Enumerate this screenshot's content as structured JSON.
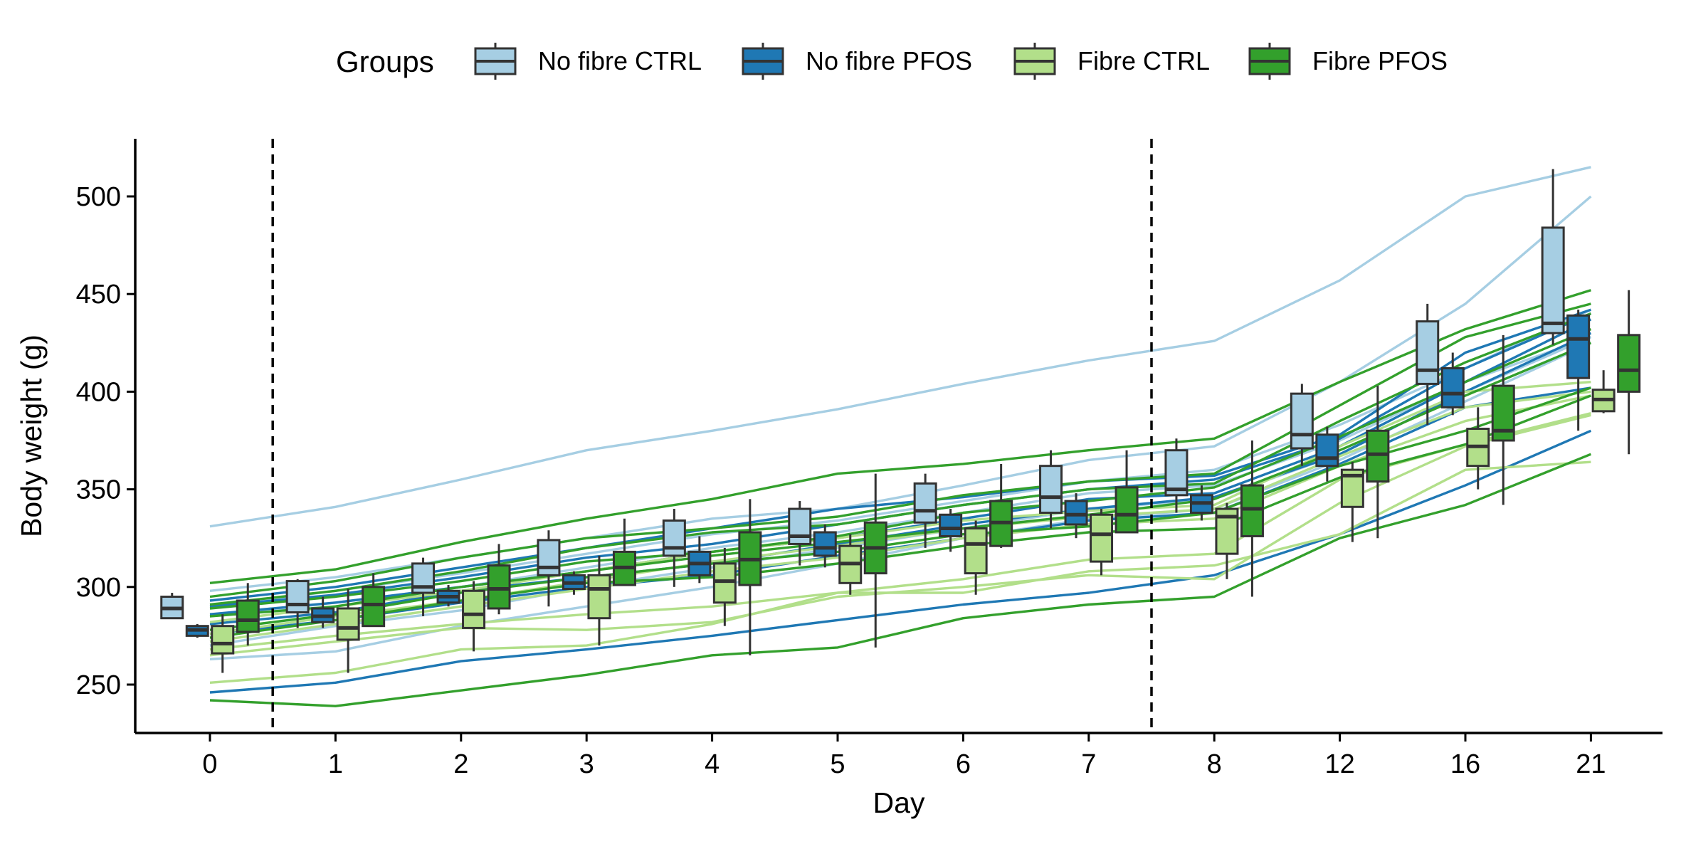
{
  "chart_data": {
    "type": "box",
    "title": "",
    "xlabel": "Day",
    "ylabel": "Body weight (g)",
    "legend_title": "Groups",
    "legend_position": "top",
    "grid": false,
    "categories": [
      "0",
      "1",
      "2",
      "3",
      "4",
      "5",
      "6",
      "7",
      "8",
      "12",
      "16",
      "21"
    ],
    "ylim": [
      225,
      530
    ],
    "yticks": [
      250,
      300,
      350,
      400,
      450,
      500
    ],
    "reference_lines_between_days": [
      [
        "0",
        "1"
      ],
      [
        "7",
        "8"
      ]
    ],
    "groups": [
      {
        "name": "No fibre CTRL",
        "color": "#a6cee3",
        "boxes": [
          [
            284,
            284,
            289,
            295,
            297
          ],
          [
            279,
            287,
            291,
            303,
            304
          ],
          [
            285,
            297,
            300,
            312,
            315
          ],
          [
            290,
            306,
            310,
            324,
            329
          ],
          [
            300,
            316,
            320,
            334,
            340
          ],
          [
            311,
            322,
            326,
            340,
            344
          ],
          [
            320,
            333,
            339,
            353,
            358
          ],
          [
            330,
            338,
            346,
            362,
            370
          ],
          [
            338,
            347,
            350,
            370,
            376
          ],
          [
            362,
            371,
            378,
            399,
            404
          ],
          [
            383,
            404,
            411,
            436,
            445
          ],
          [
            424,
            430,
            435,
            484,
            514
          ]
        ],
        "lines": [
          [
            331,
            341,
            355,
            370,
            380,
            391,
            404,
            416,
            426,
            457,
            500,
            515
          ],
          [
            298,
            305,
            315,
            325,
            335,
            340,
            352,
            365,
            372,
            405,
            445,
            500
          ],
          [
            290,
            298,
            307,
            317,
            327,
            334,
            344,
            354,
            360,
            383,
            412,
            442
          ],
          [
            285,
            292,
            300,
            310,
            320,
            328,
            338,
            348,
            352,
            375,
            405,
            428
          ],
          [
            270,
            280,
            288,
            300,
            310,
            320,
            330,
            340,
            345,
            368,
            400,
            428
          ],
          [
            263,
            267,
            280,
            290,
            300,
            312,
            325,
            335,
            340,
            365,
            395,
            425
          ]
        ]
      },
      {
        "name": "No fibre PFOS",
        "color": "#1f78b4",
        "boxes": [
          [
            274,
            275,
            278,
            280,
            281
          ],
          [
            279,
            282,
            285,
            289,
            295
          ],
          [
            290,
            292,
            295,
            298,
            301
          ],
          [
            296,
            299,
            302,
            306,
            308
          ],
          [
            302,
            306,
            312,
            318,
            326
          ],
          [
            310,
            316,
            320,
            328,
            332
          ],
          [
            318,
            326,
            330,
            337,
            340
          ],
          [
            325,
            332,
            337,
            344,
            348
          ],
          [
            334,
            338,
            343,
            347,
            352
          ],
          [
            354,
            362,
            366,
            378,
            382
          ],
          [
            388,
            392,
            399,
            412,
            420
          ],
          [
            380,
            407,
            427,
            439,
            442
          ]
        ],
        "lines": [
          [
            293,
            300,
            310,
            320,
            330,
            340,
            346,
            354,
            357,
            378,
            420,
            442
          ],
          [
            290,
            296,
            305,
            315,
            322,
            332,
            342,
            350,
            355,
            376,
            412,
            440
          ],
          [
            286,
            292,
            300,
            308,
            318,
            325,
            335,
            345,
            348,
            372,
            405,
            437
          ],
          [
            281,
            287,
            298,
            305,
            312,
            322,
            332,
            340,
            346,
            368,
            400,
            430
          ],
          [
            276,
            283,
            292,
            300,
            306,
            316,
            325,
            334,
            338,
            363,
            392,
            402
          ],
          [
            246,
            251,
            262,
            268,
            275,
            283,
            291,
            297,
            306,
            327,
            352,
            380
          ]
        ]
      },
      {
        "name": "Fibre CTRL",
        "color": "#b2df8a",
        "boxes": [
          [
            256,
            266,
            271,
            280,
            286
          ],
          [
            256,
            273,
            279,
            289,
            299
          ],
          [
            267,
            279,
            286,
            298,
            303
          ],
          [
            270,
            284,
            299,
            306,
            316
          ],
          [
            280,
            292,
            303,
            312,
            320
          ],
          [
            296,
            302,
            312,
            321,
            327
          ],
          [
            296,
            307,
            322,
            330,
            334
          ],
          [
            306,
            313,
            327,
            337,
            340
          ],
          [
            304,
            317,
            336,
            340,
            343
          ],
          [
            323,
            341,
            357,
            360,
            364
          ],
          [
            350,
            362,
            372,
            381,
            392
          ],
          [
            389,
            390,
            396,
            401,
            411
          ]
        ],
        "lines": [
          [
            282,
            290,
            298,
            308,
            318,
            325,
            334,
            339,
            342,
            372,
            400,
            405
          ],
          [
            276,
            285,
            293,
            303,
            313,
            321,
            330,
            336,
            340,
            367,
            392,
            400
          ],
          [
            272,
            281,
            290,
            299,
            308,
            315,
            325,
            332,
            335,
            362,
            385,
            398
          ],
          [
            268,
            275,
            281,
            286,
            290,
            297,
            304,
            314,
            317,
            355,
            373,
            389
          ],
          [
            265,
            272,
            279,
            278,
            282,
            295,
            300,
            306,
            304,
            343,
            372,
            388
          ],
          [
            251,
            256,
            268,
            270,
            281,
            297,
            297,
            308,
            311,
            327,
            360,
            364
          ]
        ]
      },
      {
        "name": "Fibre PFOS",
        "color": "#33a02c",
        "boxes": [
          [
            270,
            277,
            283,
            293,
            302
          ],
          [
            280,
            280,
            291,
            300,
            307
          ],
          [
            286,
            289,
            299,
            311,
            322
          ],
          [
            301,
            301,
            310,
            318,
            335
          ],
          [
            265,
            301,
            314,
            328,
            345
          ],
          [
            269,
            307,
            320,
            333,
            358
          ],
          [
            320,
            321,
            333,
            344,
            363
          ],
          [
            328,
            328,
            337,
            351,
            370
          ],
          [
            295,
            326,
            340,
            352,
            375
          ],
          [
            325,
            354,
            368,
            380,
            403
          ],
          [
            342,
            375,
            380,
            403,
            429
          ],
          [
            368,
            400,
            411,
            429,
            452
          ]
        ],
        "lines": [
          [
            302,
            309,
            323,
            335,
            345,
            358,
            363,
            370,
            376,
            405,
            432,
            452
          ],
          [
            295,
            303,
            315,
            325,
            330,
            336,
            347,
            354,
            358,
            393,
            428,
            445
          ],
          [
            291,
            298,
            308,
            320,
            328,
            332,
            342,
            350,
            353,
            385,
            415,
            440
          ],
          [
            289,
            295,
            303,
            313,
            318,
            326,
            338,
            344,
            351,
            377,
            405,
            432
          ],
          [
            285,
            290,
            300,
            308,
            316,
            323,
            330,
            337,
            345,
            370,
            398,
            425
          ],
          [
            278,
            286,
            297,
            305,
            312,
            318,
            327,
            331,
            338,
            362,
            380,
            402
          ],
          [
            274,
            283,
            293,
            302,
            305,
            312,
            321,
            328,
            330,
            356,
            373,
            398
          ],
          [
            242,
            239,
            247,
            255,
            265,
            269,
            284,
            291,
            295,
            325,
            342,
            368
          ]
        ]
      }
    ]
  }
}
